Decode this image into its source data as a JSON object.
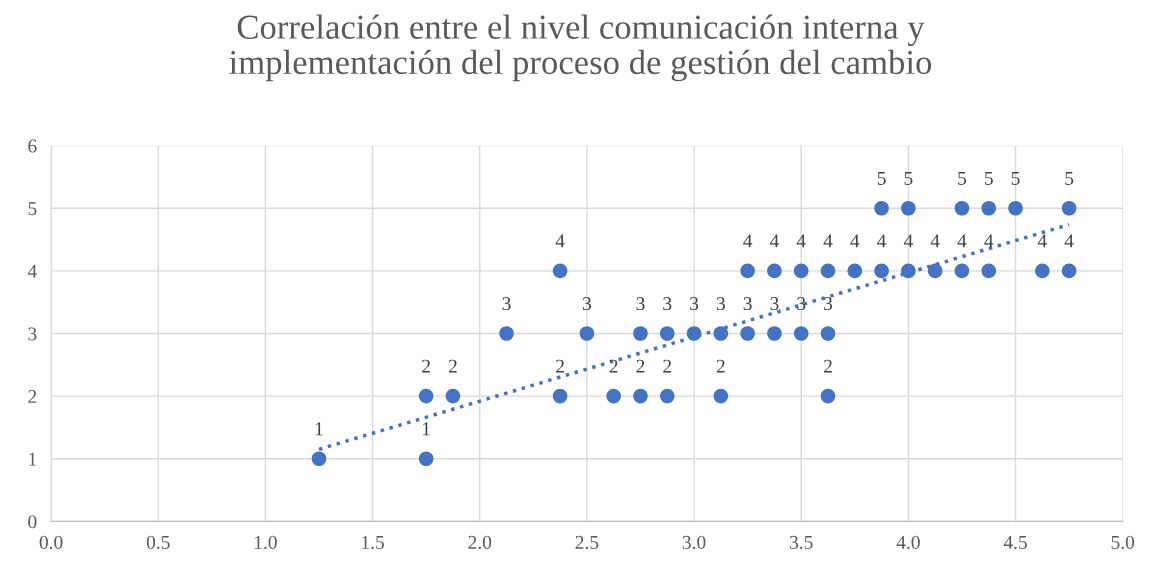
{
  "chart_data": {
    "type": "scatter",
    "title": "Correlación entre el nivel comunicación interna y\nimplementación del proceso de gestión del cambio",
    "xlim": [
      0,
      5
    ],
    "ylim": [
      0,
      6
    ],
    "xticks": [
      {
        "value": 0,
        "label": "0.0"
      },
      {
        "value": 0.5,
        "label": "0.5"
      },
      {
        "value": 1,
        "label": "1.0"
      },
      {
        "value": 1.5,
        "label": "1.5"
      },
      {
        "value": 2,
        "label": "2.0"
      },
      {
        "value": 2.5,
        "label": "2.5"
      },
      {
        "value": 3,
        "label": "3.0"
      },
      {
        "value": 3.5,
        "label": "3.5"
      },
      {
        "value": 4,
        "label": "4.0"
      },
      {
        "value": 4.5,
        "label": "4.5"
      },
      {
        "value": 5,
        "label": "5.0"
      }
    ],
    "yticks": [
      0,
      1,
      2,
      3,
      4,
      5,
      6
    ],
    "grid": true,
    "legend": false,
    "series": [
      {
        "color": "#4472c4",
        "marker": "circle",
        "data_labels": true,
        "x": [
          1.25,
          1.75,
          1.75,
          1.875,
          2.125,
          2.375,
          2.375,
          2.5,
          2.625,
          2.75,
          2.75,
          2.875,
          2.875,
          3.0,
          3.125,
          3.125,
          3.25,
          3.25,
          3.375,
          3.375,
          3.5,
          3.5,
          3.625,
          3.625,
          3.625,
          3.75,
          3.875,
          3.875,
          4.0,
          4.0,
          4.125,
          4.25,
          4.25,
          4.375,
          4.375,
          4.5,
          4.625,
          4.75,
          4.75
        ],
        "values": [
          1,
          1,
          2,
          2,
          3,
          4,
          2,
          3,
          2,
          2,
          3,
          2,
          3,
          3,
          3,
          2,
          3,
          4,
          3,
          4,
          3,
          4,
          3,
          4,
          2,
          4,
          4,
          5,
          5,
          4,
          4,
          5,
          4,
          5,
          4,
          5,
          4,
          5,
          4
        ]
      },
      {
        "type": "line",
        "color": "#4472c4",
        "line_style": "dotted",
        "marker": "none",
        "x": [
          1.25,
          4.75
        ],
        "values": [
          1.15,
          4.74
        ]
      }
    ]
  }
}
